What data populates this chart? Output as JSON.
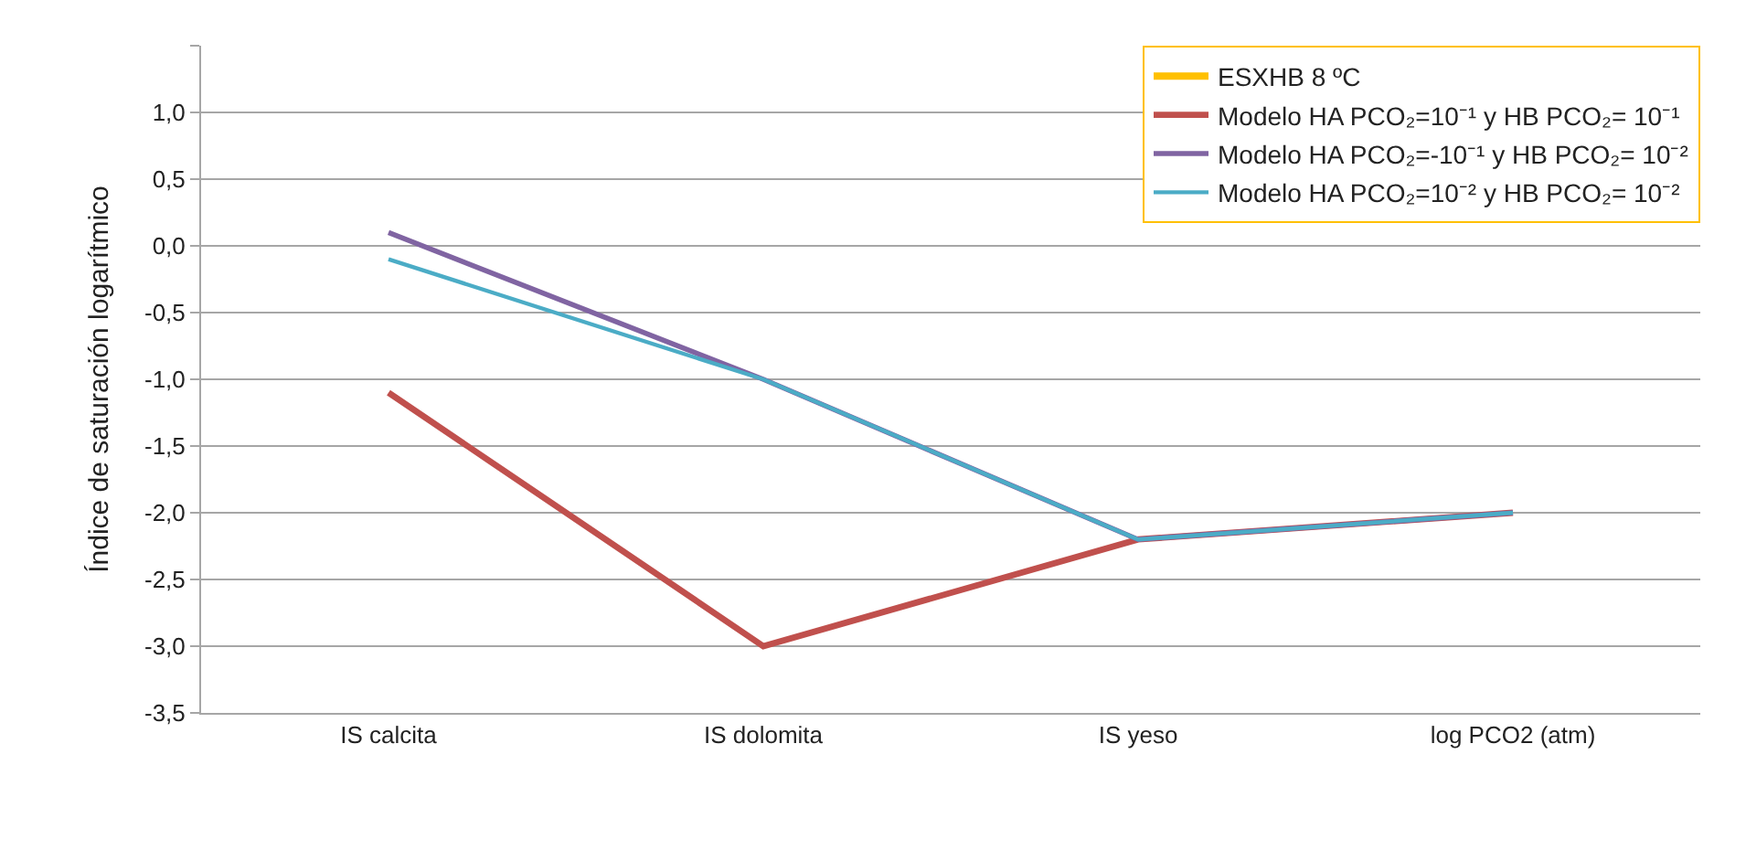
{
  "chart_data": {
    "type": "line",
    "ylabel": "Índice de saturación logarítmico",
    "categories": [
      "IS calcita",
      "IS dolomita",
      "IS yeso",
      "log PCO2 (atm)"
    ],
    "series": [
      {
        "name": "ESXHB 8 ºC",
        "color": "#ffc000",
        "values": [
          null,
          null,
          null,
          null
        ]
      },
      {
        "name": "Modelo HA PCO₂=10⁻¹ y HB PCO₂= 10⁻¹",
        "color": "#c0504d",
        "values": [
          -1.1,
          -3.0,
          -2.2,
          -2.0
        ]
      },
      {
        "name": "Modelo HA PCO₂=-10⁻¹ y HB PCO₂= 10⁻²",
        "color": "#8064a2",
        "values": [
          0.1,
          -1.0,
          -2.2,
          -2.0
        ]
      },
      {
        "name": "Modelo HA PCO₂=10⁻² y HB PCO₂= 10⁻²",
        "color": "#4bacc6",
        "values": [
          -0.1,
          -1.0,
          -2.2,
          -2.0
        ]
      }
    ],
    "ylim": [
      -3.5,
      1.5
    ],
    "yticks": [
      {
        "value": -3.5,
        "label": "-3,5"
      },
      {
        "value": -3.0,
        "label": "-3,0"
      },
      {
        "value": -2.5,
        "label": "-2,5"
      },
      {
        "value": -2.0,
        "label": "-2,0"
      },
      {
        "value": -1.5,
        "label": "-1,5"
      },
      {
        "value": -1.0,
        "label": "-1,0"
      },
      {
        "value": -0.5,
        "label": "-0,5"
      },
      {
        "value": 0.0,
        "label": "0,0"
      },
      {
        "value": 0.5,
        "label": "0,5"
      },
      {
        "value": 1.0,
        "label": "1,0"
      },
      {
        "value": 1.5,
        "label": null
      }
    ],
    "grid": "y",
    "legend": "top right",
    "marker": "none",
    "line_style": "solid"
  }
}
